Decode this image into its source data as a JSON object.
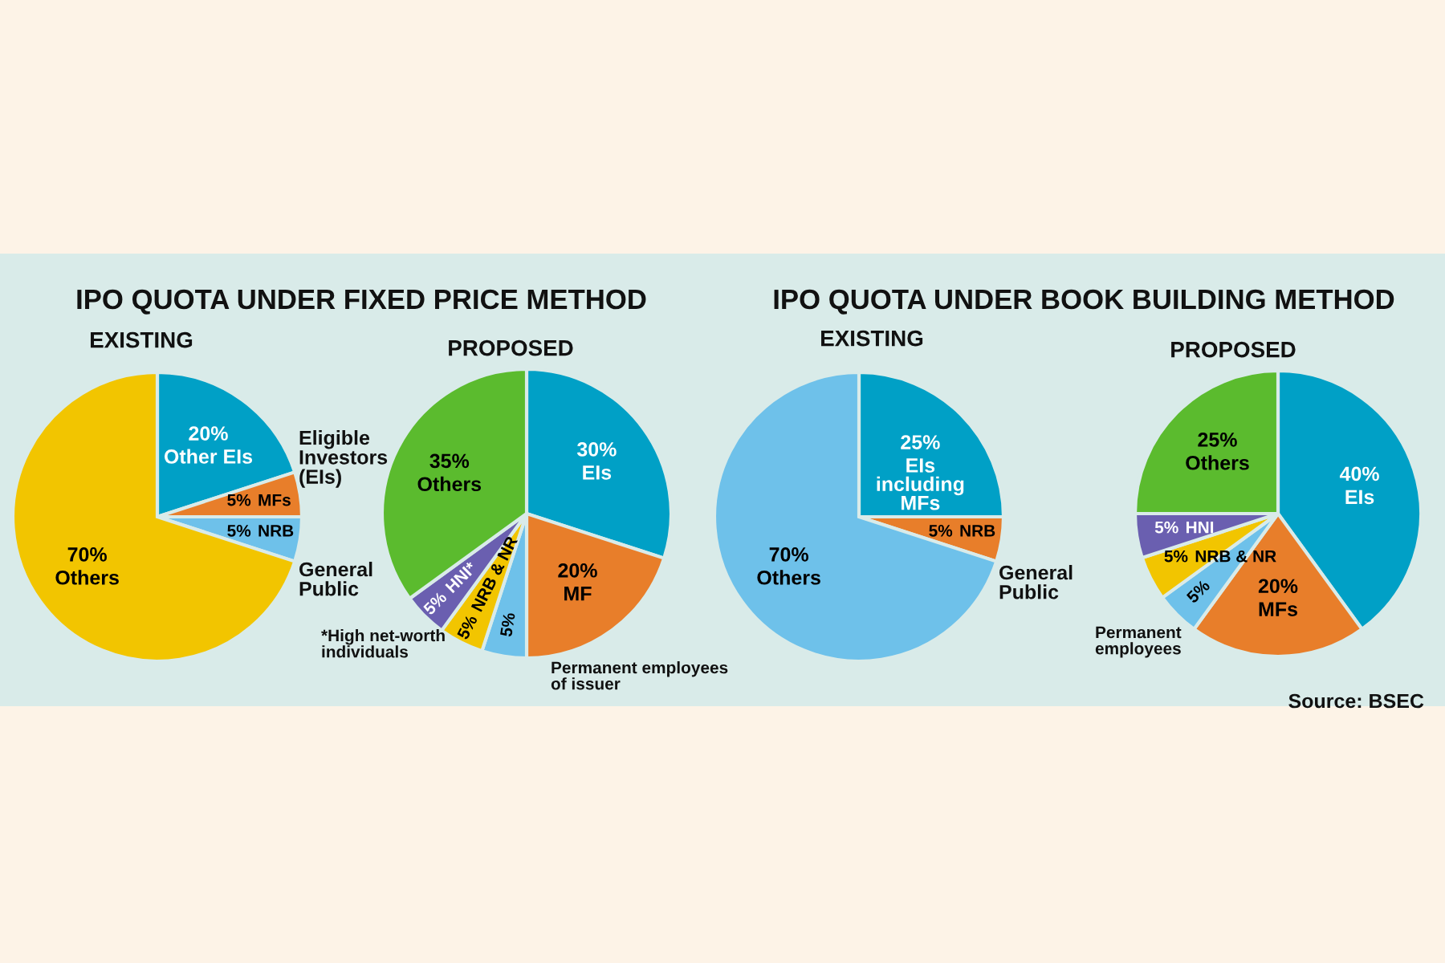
{
  "chart_data": [
    {
      "type": "pie",
      "title": "IPO QUOTA UNDER FIXED PRICE METHOD",
      "subtitle": "EXISTING",
      "categories": [
        "Other EIs",
        "MFs",
        "NRB",
        "Others"
      ],
      "values": [
        20,
        5,
        5,
        70
      ],
      "value_labels": [
        "20%",
        "5%",
        "5%",
        "70%"
      ],
      "colors": [
        "#00a0c6",
        "#e87e2a",
        "#6ec1ea",
        "#f2c500"
      ],
      "legend": false,
      "annotations": [
        "Eligible\nInvestors\n(EIs)",
        "General\nPublic"
      ]
    },
    {
      "type": "pie",
      "subtitle": "PROPOSED",
      "categories": [
        "EIs",
        "MF",
        null,
        "NRB & NR",
        "HNI*",
        "Others"
      ],
      "values": [
        30,
        20,
        5,
        5,
        5,
        35
      ],
      "value_labels": [
        "30%",
        "20%",
        "5%",
        "5%",
        "5%",
        "35%"
      ],
      "colors": [
        "#00a0c6",
        "#e87e2a",
        "#6ec1ea",
        "#f2c500",
        "#6a5fb0",
        "#5bbb2e"
      ],
      "legend": false,
      "annotations": [
        "*High net-worth\nindividuals",
        "Permanent employees\nof issuer"
      ]
    },
    {
      "type": "pie",
      "title": "IPO QUOTA UNDER BOOK BUILDING METHOD",
      "subtitle": "EXISTING",
      "categories": [
        "EIs\nincluding\nMFs",
        "NRB",
        "Others"
      ],
      "values": [
        25,
        5,
        70
      ],
      "value_labels": [
        "25%",
        "5%",
        "70%"
      ],
      "colors": [
        "#00a0c6",
        "#e87e2a",
        "#6ec1ea"
      ],
      "legend": false,
      "annotations": [
        "General\nPublic"
      ]
    },
    {
      "type": "pie",
      "subtitle": "PROPOSED",
      "categories": [
        "EIs",
        "MFs",
        null,
        "NRB & NR",
        "HNI",
        "Others"
      ],
      "values": [
        40,
        20,
        5,
        5,
        5,
        25
      ],
      "value_labels": [
        "40%",
        "20%",
        "5%",
        "5%",
        "5%",
        "25%"
      ],
      "colors": [
        "#00a0c6",
        "#e87e2a",
        "#6ec1ea",
        "#f2c500",
        "#6a5fb0",
        "#5bbb2e"
      ],
      "legend": false,
      "annotations": [
        "Permanent\nemployees",
        "Source: BSEC"
      ]
    }
  ]
}
